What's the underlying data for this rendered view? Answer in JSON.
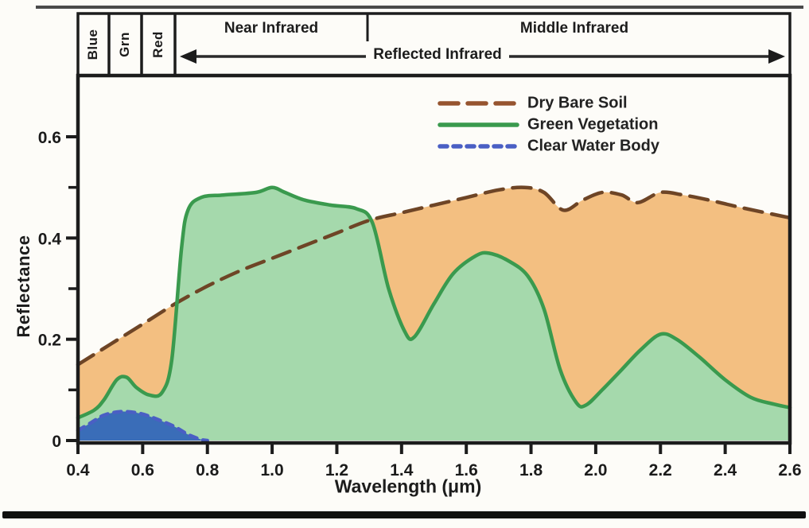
{
  "figure": {
    "bands": {
      "blue": "Blue",
      "green": "Grn",
      "red": "Red",
      "near_infrared": "Near Infrared",
      "middle_infrared": "Middle Infrared",
      "reflected_infrared": "Reflected Infrared"
    },
    "colors": {
      "frame": "#1c1c1c",
      "background": "#fdfcf8",
      "top_rule": "#4a4a4a",
      "bottom_rule": "#101010"
    }
  },
  "chart_data": {
    "type": "area",
    "title": "",
    "xlabel": "Wavelength (μm)",
    "ylabel": "Reflectance",
    "xlim": [
      0.4,
      2.6
    ],
    "ylim": [
      0,
      0.72
    ],
    "grid": false,
    "legend_position": "inside-top-center",
    "xticks": [
      "0.4",
      "0.6",
      "0.8",
      "1.0",
      "1.2",
      "1.4",
      "1.6",
      "1.8",
      "2.0",
      "2.2",
      "2.4",
      "2.6"
    ],
    "yticks": [
      "0",
      "0.2",
      "0.4",
      "0.6"
    ],
    "ytick_minor": [
      0.1,
      0.3,
      0.5
    ],
    "series": [
      {
        "name": "Dry Bare Soil",
        "style": "long-dash",
        "line_color": "#6e4526",
        "legend_color": "#96542f",
        "fill_color": "#f3bf81",
        "points": [
          [
            0.4,
            0.15
          ],
          [
            0.5,
            0.19
          ],
          [
            0.6,
            0.23
          ],
          [
            0.7,
            0.27
          ],
          [
            0.8,
            0.305
          ],
          [
            0.9,
            0.335
          ],
          [
            1.0,
            0.36
          ],
          [
            1.1,
            0.385
          ],
          [
            1.2,
            0.41
          ],
          [
            1.3,
            0.435
          ],
          [
            1.4,
            0.45
          ],
          [
            1.5,
            0.465
          ],
          [
            1.6,
            0.48
          ],
          [
            1.7,
            0.495
          ],
          [
            1.78,
            0.5
          ],
          [
            1.84,
            0.49
          ],
          [
            1.9,
            0.455
          ],
          [
            1.96,
            0.475
          ],
          [
            2.02,
            0.49
          ],
          [
            2.08,
            0.485
          ],
          [
            2.13,
            0.47
          ],
          [
            2.2,
            0.49
          ],
          [
            2.27,
            0.485
          ],
          [
            2.35,
            0.475
          ],
          [
            2.45,
            0.46
          ],
          [
            2.6,
            0.44
          ]
        ]
      },
      {
        "name": "Green Vegetation",
        "style": "solid",
        "line_color": "#3a9a4e",
        "legend_color": "#3a9a4e",
        "fill_color": "#a5d9ac",
        "points": [
          [
            0.4,
            0.045
          ],
          [
            0.45,
            0.06
          ],
          [
            0.48,
            0.08
          ],
          [
            0.52,
            0.12
          ],
          [
            0.55,
            0.125
          ],
          [
            0.58,
            0.105
          ],
          [
            0.62,
            0.09
          ],
          [
            0.66,
            0.095
          ],
          [
            0.69,
            0.16
          ],
          [
            0.72,
            0.38
          ],
          [
            0.74,
            0.455
          ],
          [
            0.78,
            0.48
          ],
          [
            0.85,
            0.485
          ],
          [
            0.95,
            0.49
          ],
          [
            1.0,
            0.5
          ],
          [
            1.04,
            0.49
          ],
          [
            1.1,
            0.475
          ],
          [
            1.18,
            0.465
          ],
          [
            1.26,
            0.458
          ],
          [
            1.31,
            0.43
          ],
          [
            1.36,
            0.3
          ],
          [
            1.41,
            0.215
          ],
          [
            1.44,
            0.205
          ],
          [
            1.5,
            0.27
          ],
          [
            1.56,
            0.33
          ],
          [
            1.63,
            0.365
          ],
          [
            1.67,
            0.37
          ],
          [
            1.73,
            0.355
          ],
          [
            1.79,
            0.325
          ],
          [
            1.84,
            0.26
          ],
          [
            1.89,
            0.14
          ],
          [
            1.94,
            0.075
          ],
          [
            1.97,
            0.07
          ],
          [
            2.02,
            0.1
          ],
          [
            2.08,
            0.14
          ],
          [
            2.14,
            0.18
          ],
          [
            2.2,
            0.21
          ],
          [
            2.25,
            0.2
          ],
          [
            2.32,
            0.165
          ],
          [
            2.4,
            0.12
          ],
          [
            2.48,
            0.085
          ],
          [
            2.55,
            0.072
          ],
          [
            2.6,
            0.065
          ]
        ]
      },
      {
        "name": "Clear Water Body",
        "style": "short-dash",
        "line_color": "#4a5fc4",
        "legend_color": "#4a5fc4",
        "fill_color": "#3a6db8",
        "points": [
          [
            0.4,
            0.02
          ],
          [
            0.44,
            0.035
          ],
          [
            0.48,
            0.05
          ],
          [
            0.53,
            0.057
          ],
          [
            0.58,
            0.055
          ],
          [
            0.62,
            0.048
          ],
          [
            0.66,
            0.038
          ],
          [
            0.7,
            0.027
          ],
          [
            0.74,
            0.012
          ],
          [
            0.78,
            0.002
          ],
          [
            0.8,
            0
          ]
        ]
      }
    ]
  }
}
